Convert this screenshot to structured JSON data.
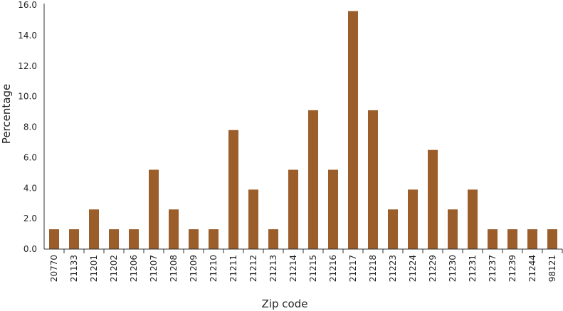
{
  "chart_data": {
    "type": "bar",
    "title": "",
    "xlabel": "Zip code",
    "ylabel": "Percentage",
    "categories": [
      "20770",
      "21133",
      "21201",
      "21202",
      "21206",
      "21207",
      "21208",
      "21209",
      "21210",
      "21211",
      "21212",
      "21213",
      "21214",
      "21215",
      "21216",
      "21217",
      "21218",
      "21223",
      "21224",
      "21229",
      "21230",
      "21231",
      "21237",
      "21239",
      "21244",
      "98121"
    ],
    "values": [
      1.3,
      1.3,
      2.6,
      1.3,
      1.3,
      5.2,
      2.6,
      1.3,
      1.3,
      7.8,
      3.9,
      1.3,
      5.2,
      9.1,
      5.2,
      15.6,
      9.1,
      2.6,
      3.9,
      6.5,
      2.6,
      3.9,
      1.3,
      1.3,
      1.3,
      1.3
    ],
    "ylim": [
      0,
      16
    ],
    "yticks": [
      "0.0",
      "2.0",
      "4.0",
      "6.0",
      "8.0",
      "10.0",
      "12.0",
      "14.0",
      "16.0"
    ],
    "grid": false,
    "bar_color": "#9b5e2a",
    "axis_color": "#333333"
  }
}
